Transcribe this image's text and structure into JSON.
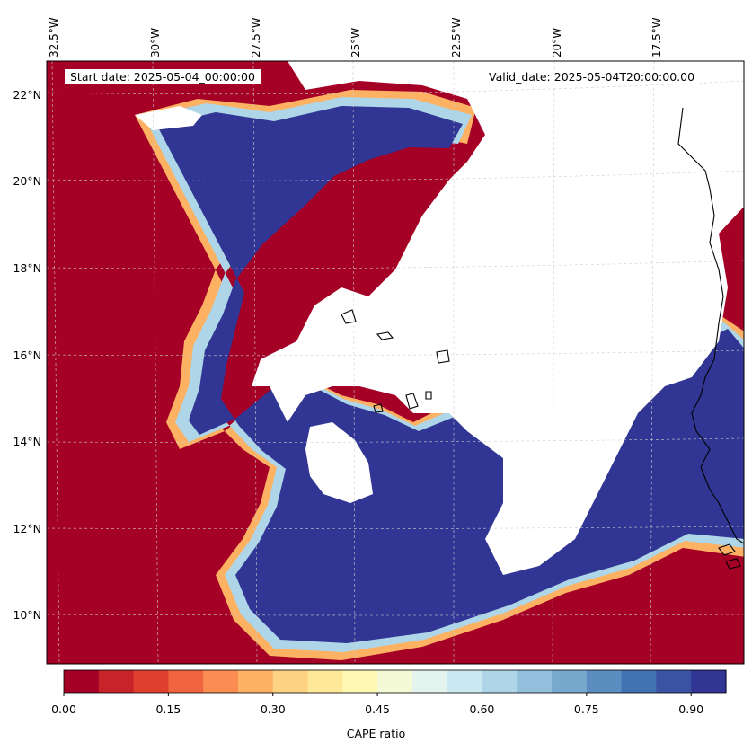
{
  "map": {
    "start_date": "Start date: 2025-05-04_00:00:00",
    "valid_date": "Valid_date: 2025-05-04T20:00:00.00",
    "lon_ticks": [
      "32.5°W",
      "30°W",
      "27.5°W",
      "25°W",
      "22.5°W",
      "20°W",
      "17.5°W"
    ],
    "lat_ticks": [
      "22°N",
      "20°N",
      "18°N",
      "16°N",
      "14°N",
      "12°N",
      "10°N"
    ],
    "colorbar": {
      "label": "CAPE ratio",
      "ticks": [
        "0.00",
        "0.15",
        "0.30",
        "0.45",
        "0.60",
        "0.75",
        "0.90"
      ],
      "levels": [
        0.0,
        0.05,
        0.1,
        0.15,
        0.2,
        0.25,
        0.3,
        0.35,
        0.4,
        0.45,
        0.5,
        0.55,
        0.6,
        0.65,
        0.7,
        0.75,
        0.8,
        0.85,
        0.9,
        0.95,
        1.0
      ],
      "colors": [
        "#a50026",
        "#c9232a",
        "#de3f2e",
        "#ef633f",
        "#f98d52",
        "#fdb163",
        "#fed283",
        "#fee89a",
        "#fff8b4",
        "#f4fad6",
        "#e3f4ef",
        "#cae8f2",
        "#aed6e8",
        "#92c0dc",
        "#77a9cf",
        "#5b8dc0",
        "#4372b2",
        "#3a54a3",
        "#313695"
      ],
      "colormap": "RdYlBu"
    },
    "colors": {
      "land_fill": "#ffffff",
      "coast": "#000000",
      "grid": "#cccccc"
    }
  }
}
